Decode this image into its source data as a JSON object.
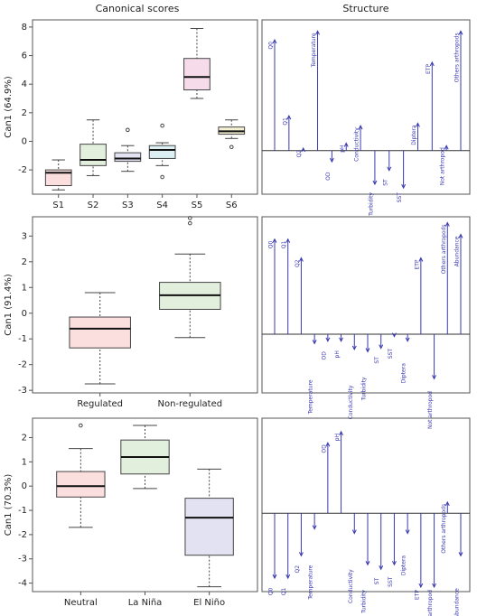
{
  "column_titles": [
    "Canonical scores",
    "Structure"
  ],
  "chart_data": [
    {
      "type": "box",
      "ylabel": "Can1 (64.9%)",
      "ylim": [
        -3.7,
        8.5
      ],
      "yticks": [
        -2,
        0,
        2,
        4,
        6,
        8
      ],
      "categories": [
        "S1",
        "S2",
        "S3",
        "S4",
        "S5",
        "S6"
      ],
      "boxes": [
        {
          "min": -3.4,
          "q1": -3.1,
          "median": -2.2,
          "q3": -2.0,
          "max": -1.3,
          "outliers": [],
          "color": "#fbdede"
        },
        {
          "min": -2.4,
          "q1": -1.7,
          "median": -1.3,
          "q3": -0.2,
          "max": 1.5,
          "outliers": [],
          "color": "#e1efdc"
        },
        {
          "min": -2.1,
          "q1": -1.4,
          "median": -1.2,
          "q3": -0.8,
          "max": -0.3,
          "outliers": [
            0.8
          ],
          "color": "#e2e2f2"
        },
        {
          "min": -1.7,
          "q1": -1.2,
          "median": -0.6,
          "q3": -0.3,
          "max": -0.1,
          "outliers": [
            1.1,
            -2.5
          ],
          "color": "#dcf0f4"
        },
        {
          "min": 3.0,
          "q1": 3.6,
          "median": 4.5,
          "q3": 5.8,
          "max": 7.9,
          "outliers": [],
          "color": "#f6dcea"
        },
        {
          "min": 0.2,
          "q1": 0.5,
          "median": 0.7,
          "q3": 1.0,
          "max": 1.5,
          "outliers": [
            -0.4
          ],
          "color": "#f7f1d4"
        }
      ]
    },
    {
      "type": "vector",
      "ylim": [
        -0.35,
        1.05
      ],
      "color": "#3a3ab0",
      "categories": [
        "Q0",
        "Q1",
        "Q2",
        "Temperature",
        "OD",
        "pH",
        "Conductivity",
        "Turbidity",
        "ST",
        "SST",
        "Diptera",
        "ETP",
        "Not arthropod",
        "Others arthropods"
      ],
      "values": [
        0.89,
        0.28,
        0.02,
        0.96,
        -0.09,
        0.06,
        0.2,
        -0.27,
        -0.16,
        -0.3,
        0.22,
        0.71,
        0.04,
        0.96
      ]
    },
    {
      "type": "box",
      "ylabel": "Can1 (91.4%)",
      "ylim": [
        -3.1,
        3.75
      ],
      "yticks": [
        -3,
        -2,
        -1,
        0,
        1,
        2,
        3
      ],
      "categories": [
        "Regulated",
        "Non-regulated"
      ],
      "boxes": [
        {
          "min": -2.75,
          "q1": -1.35,
          "median": -0.6,
          "q3": -0.15,
          "max": 0.8,
          "outliers": [],
          "color": "#fbdede"
        },
        {
          "min": -0.95,
          "q1": 0.15,
          "median": 0.7,
          "q3": 1.2,
          "max": 2.3,
          "outliers": [
            3.5,
            3.7
          ],
          "color": "#e1efdc"
        }
      ]
    },
    {
      "type": "vector",
      "ylim": [
        -0.5,
        1.0
      ],
      "color": "#3a3ab0",
      "categories": [
        "Q0",
        "Q1",
        "Q2",
        "Temperature",
        "OD",
        "pH",
        "Conductivity",
        "Turbidity",
        "ST",
        "SST",
        "Diptera",
        "ETP",
        "Not arthropod",
        "Others arthropods",
        "Abundance"
      ],
      "values": [
        0.81,
        0.81,
        0.65,
        -0.08,
        -0.06,
        -0.06,
        -0.13,
        -0.15,
        -0.12,
        -0.02,
        -0.06,
        0.65,
        -0.38,
        0.95,
        0.85
      ]
    },
    {
      "type": "box",
      "ylabel": "Can1 (70.3%)",
      "ylim": [
        -4.35,
        2.8
      ],
      "yticks": [
        -4,
        -3,
        -2,
        -1,
        0,
        1,
        2
      ],
      "categories": [
        "Neutral",
        "La Niña",
        "El Niño"
      ],
      "boxes": [
        {
          "min": -1.7,
          "q1": -0.45,
          "median": 0.0,
          "q3": 0.6,
          "max": 1.55,
          "outliers": [
            2.5
          ],
          "color": "#fbdede"
        },
        {
          "min": -0.1,
          "q1": 0.5,
          "median": 1.2,
          "q3": 1.9,
          "max": 2.5,
          "outliers": [],
          "color": "#e1efdc"
        },
        {
          "min": -4.15,
          "q1": -2.85,
          "median": -1.3,
          "q3": -0.5,
          "max": 0.7,
          "outliers": [],
          "color": "#e2e2f2"
        }
      ]
    },
    {
      "type": "vector",
      "ylim": [
        -0.7,
        0.85
      ],
      "color": "#3a3ab0",
      "categories": [
        "Q0",
        "Q1",
        "Q2",
        "Temperature",
        "OD",
        "pH",
        "Conductivity",
        "Turbidity",
        "ST",
        "SST",
        "Diptera",
        "ETP",
        "Not arthropod",
        "Others arthropods",
        "Abundance"
      ],
      "values": [
        -0.58,
        -0.58,
        -0.38,
        -0.14,
        0.63,
        0.73,
        -0.18,
        -0.46,
        -0.5,
        -0.46,
        -0.18,
        -0.66,
        -0.66,
        0.1,
        -0.38
      ]
    }
  ]
}
